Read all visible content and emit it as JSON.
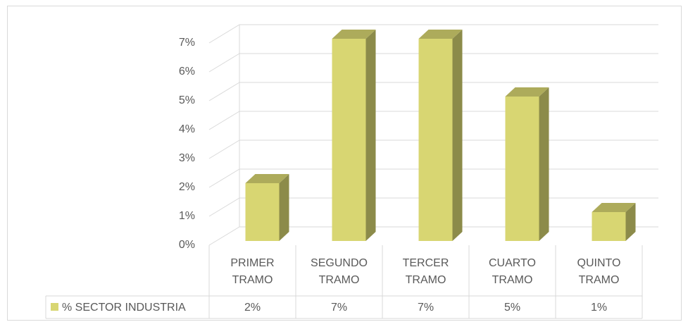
{
  "chart_data": {
    "type": "bar3d",
    "categories": [
      "PRIMER TRAMO",
      "SEGUNDO TRAMO",
      "TERCER TRAMO",
      "CUARTO TRAMO",
      "QUINTO TRAMO"
    ],
    "series": [
      {
        "name": "% SECTOR INDUSTRIA",
        "color": "#d8d672",
        "values": [
          2,
          7,
          7,
          5,
          1
        ],
        "value_labels": [
          "2%",
          "7%",
          "7%",
          "5%",
          "1%"
        ]
      }
    ],
    "ylim": [
      0,
      7
    ],
    "yticks": [
      {
        "value": 0,
        "label": "0%"
      },
      {
        "value": 1,
        "label": "1%"
      },
      {
        "value": 2,
        "label": "2%"
      },
      {
        "value": 3,
        "label": "3%"
      },
      {
        "value": 4,
        "label": "4%"
      },
      {
        "value": 5,
        "label": "5%"
      },
      {
        "value": 6,
        "label": "6%"
      },
      {
        "value": 7,
        "label": "7%"
      }
    ],
    "grid": true,
    "data_table": true
  }
}
